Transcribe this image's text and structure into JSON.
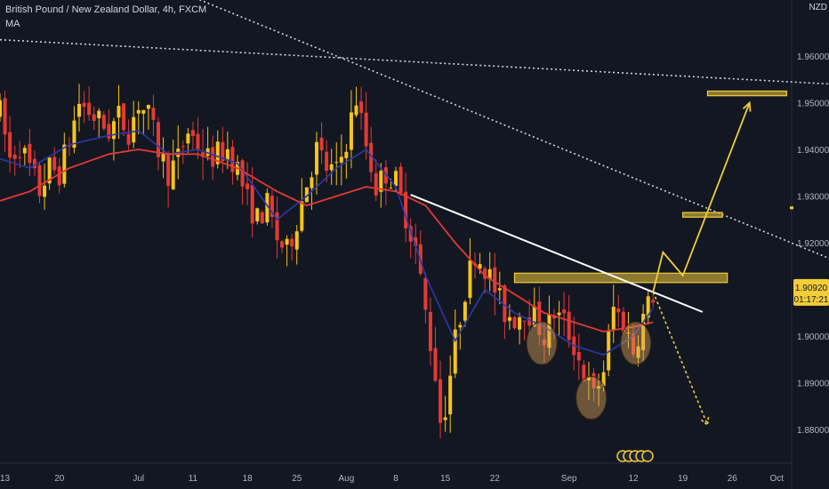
{
  "header": {
    "title": "British Pound / New Zealand Dollar, 4h, FXCM",
    "indicator": "MA",
    "currency": "NZD"
  },
  "price_badge": {
    "price": "1.90920",
    "countdown": "01:17:21"
  },
  "colors": {
    "background": "#131722",
    "up": "#f5c518",
    "down": "#e53935",
    "ma_slow": "#e53935",
    "ma_fast": "#2a3aa8",
    "zone": "#f2cc3a",
    "trendline": "#ffffff",
    "dotted": "#d1d4dc",
    "axis_text": "#b2b5be",
    "circles": "#d9a25a"
  },
  "chart_data": {
    "type": "candlestick",
    "title": "British Pound / New Zealand Dollar, 4h, FXCM",
    "ylim": [
      1.873,
      1.972
    ],
    "xlim": [
      0,
      160
    ],
    "x_ticks": [
      {
        "label": "13",
        "x": 1
      },
      {
        "label": "20",
        "x": 12
      },
      {
        "label": "Jul",
        "x": 28
      },
      {
        "label": "11",
        "x": 39
      },
      {
        "label": "18",
        "x": 50
      },
      {
        "label": "25",
        "x": 60
      },
      {
        "label": "Aug",
        "x": 70
      },
      {
        "label": "8",
        "x": 80
      },
      {
        "label": "15",
        "x": 90
      },
      {
        "label": "22",
        "x": 100
      },
      {
        "label": "Sep",
        "x": 115
      },
      {
        "label": "12",
        "x": 128
      },
      {
        "label": "19",
        "x": 138
      },
      {
        "label": "26",
        "x": 148
      },
      {
        "label": "Oct",
        "x": 157
      }
    ],
    "y_ticks": [
      "1.88000",
      "1.89000",
      "1.90000",
      "1.91000",
      "1.92000",
      "1.93000",
      "1.94000",
      "1.95000",
      "1.96000"
    ],
    "last_price": 1.9092,
    "close_path": [
      [
        0,
        1.948
      ],
      [
        2,
        1.938
      ],
      [
        4,
        1.941
      ],
      [
        6,
        1.936
      ],
      [
        8,
        1.931
      ],
      [
        10,
        1.936
      ],
      [
        12,
        1.935
      ],
      [
        14,
        1.942
      ],
      [
        16,
        1.95
      ],
      [
        18,
        1.948
      ],
      [
        20,
        1.946
      ],
      [
        22,
        1.944
      ],
      [
        24,
        1.947
      ],
      [
        26,
        1.944
      ],
      [
        28,
        1.95
      ],
      [
        30,
        1.947
      ],
      [
        32,
        1.94
      ],
      [
        34,
        1.935
      ],
      [
        36,
        1.938
      ],
      [
        38,
        1.944
      ],
      [
        40,
        1.941
      ],
      [
        42,
        1.938
      ],
      [
        44,
        1.939
      ],
      [
        46,
        1.94
      ],
      [
        48,
        1.936
      ],
      [
        50,
        1.929
      ],
      [
        52,
        1.925
      ],
      [
        54,
        1.928
      ],
      [
        56,
        1.921
      ],
      [
        58,
        1.918
      ],
      [
        60,
        1.925
      ],
      [
        62,
        1.933
      ],
      [
        64,
        1.94
      ],
      [
        66,
        1.936
      ],
      [
        68,
        1.935
      ],
      [
        70,
        1.942
      ],
      [
        72,
        1.951
      ],
      [
        74,
        1.941
      ],
      [
        76,
        1.932
      ],
      [
        78,
        1.935
      ],
      [
        80,
        1.933
      ],
      [
        82,
        1.926
      ],
      [
        84,
        1.919
      ],
      [
        86,
        1.905
      ],
      [
        88,
        1.892
      ],
      [
        89,
        1.882
      ],
      [
        90,
        1.885
      ],
      [
        92,
        1.899
      ],
      [
        94,
        1.91
      ],
      [
        96,
        1.918
      ],
      [
        98,
        1.915
      ],
      [
        100,
        1.91
      ],
      [
        102,
        1.905
      ],
      [
        104,
        1.904
      ],
      [
        106,
        1.906
      ],
      [
        108,
        1.904
      ],
      [
        110,
        1.9
      ],
      [
        112,
        1.905
      ],
      [
        114,
        1.903
      ],
      [
        116,
        1.898
      ],
      [
        118,
        1.892
      ],
      [
        120,
        1.887
      ],
      [
        122,
        1.893
      ],
      [
        124,
        1.906
      ],
      [
        126,
        1.903
      ],
      [
        128,
        1.897
      ],
      [
        130,
        1.904
      ],
      [
        132,
        1.909
      ]
    ],
    "ma_slow_path": [
      [
        0,
        1.929
      ],
      [
        6,
        1.931
      ],
      [
        14,
        1.936
      ],
      [
        22,
        1.939
      ],
      [
        28,
        1.94
      ],
      [
        34,
        1.939
      ],
      [
        40,
        1.939
      ],
      [
        48,
        1.936
      ],
      [
        56,
        1.931
      ],
      [
        62,
        1.928
      ],
      [
        68,
        1.93
      ],
      [
        74,
        1.932
      ],
      [
        80,
        1.931
      ],
      [
        86,
        1.928
      ],
      [
        92,
        1.92
      ],
      [
        98,
        1.913
      ],
      [
        104,
        1.909
      ],
      [
        110,
        1.905
      ],
      [
        116,
        1.903
      ],
      [
        122,
        1.901
      ],
      [
        128,
        1.902
      ],
      [
        132,
        1.903
      ]
    ],
    "ma_fast_path": [
      [
        0,
        1.938
      ],
      [
        6,
        1.936
      ],
      [
        14,
        1.941
      ],
      [
        22,
        1.943
      ],
      [
        28,
        1.944
      ],
      [
        34,
        1.939
      ],
      [
        40,
        1.94
      ],
      [
        48,
        1.937
      ],
      [
        56,
        1.925
      ],
      [
        62,
        1.93
      ],
      [
        68,
        1.936
      ],
      [
        74,
        1.94
      ],
      [
        80,
        1.932
      ],
      [
        86,
        1.913
      ],
      [
        92,
        1.899
      ],
      [
        98,
        1.91
      ],
      [
        104,
        1.905
      ],
      [
        110,
        1.902
      ],
      [
        116,
        1.898
      ],
      [
        122,
        1.896
      ],
      [
        128,
        1.9
      ],
      [
        132,
        1.906
      ]
    ],
    "annotations": {
      "zones": [
        {
          "x0": 104,
          "x1": 147,
          "y0": 1.9115,
          "y1": 1.9135
        },
        {
          "x0": 138,
          "x1": 146,
          "y0": 1.9255,
          "y1": 1.9265
        },
        {
          "x0": 143,
          "x1": 159,
          "y0": 1.9515,
          "y1": 1.9525
        }
      ],
      "trendline": [
        [
          83,
          1.9303
        ],
        [
          142,
          1.9052
        ]
      ],
      "dotted_lines": [
        [
          [
            0,
            1.9635
          ],
          [
            168,
            1.954
          ]
        ],
        [
          [
            37,
            1.9735
          ],
          [
            168,
            1.9165
          ]
        ]
      ],
      "circles": [
        {
          "x": 109.5,
          "y": 1.8985
        },
        {
          "x": 119.5,
          "y": 1.8868
        },
        {
          "x": 128.5,
          "y": 1.8985
        }
      ],
      "projection_up": [
        [
          132,
          1.9095
        ],
        [
          134,
          1.918
        ],
        [
          138,
          1.913
        ],
        [
          151.5,
          1.95
        ]
      ],
      "projection_down": [
        [
          132,
          1.9095
        ],
        [
          143,
          1.881
        ]
      ],
      "marker": {
        "x": 160,
        "y": 1.9275
      }
    }
  }
}
